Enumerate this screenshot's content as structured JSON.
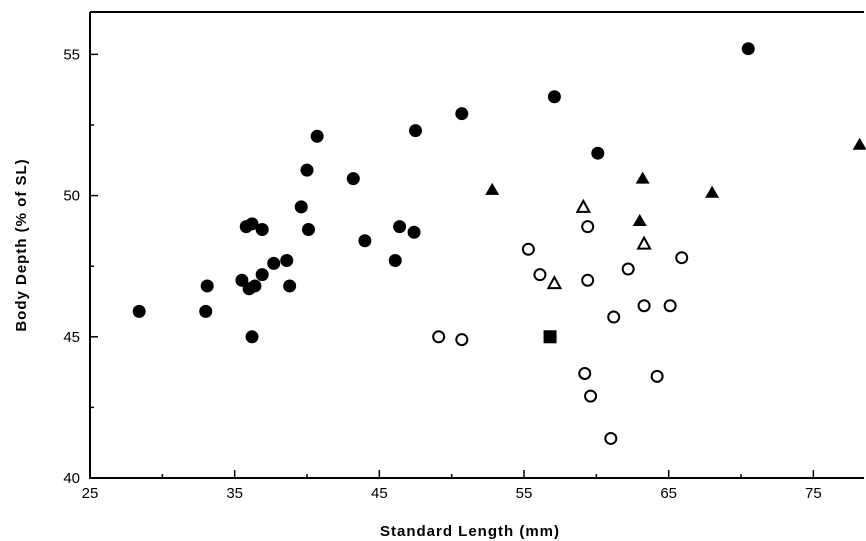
{
  "chart_data": {
    "type": "scatter",
    "title": "",
    "xlabel": "Standard Length (mm)",
    "ylabel": "Body Depth (% of SL)",
    "xlim": [
      25,
      78.5
    ],
    "ylim": [
      40,
      56.5
    ],
    "xticks": [
      25,
      35,
      45,
      55,
      65,
      75
    ],
    "yticks": [
      40,
      45,
      50,
      55
    ],
    "grid": false,
    "legend": "none",
    "series": [
      {
        "marker": "filled-circle",
        "color": "#000000",
        "points": [
          [
            28.4,
            45.9
          ],
          [
            33.0,
            45.9
          ],
          [
            33.1,
            46.8
          ],
          [
            35.5,
            47.0
          ],
          [
            35.8,
            48.9
          ],
          [
            36.0,
            46.7
          ],
          [
            36.2,
            49.0
          ],
          [
            36.2,
            45.0
          ],
          [
            36.4,
            46.8
          ],
          [
            36.9,
            47.2
          ],
          [
            36.9,
            48.8
          ],
          [
            37.7,
            47.6
          ],
          [
            38.6,
            47.7
          ],
          [
            38.8,
            46.8
          ],
          [
            39.6,
            49.6
          ],
          [
            40.0,
            50.9
          ],
          [
            40.1,
            48.8
          ],
          [
            40.7,
            52.1
          ],
          [
            43.2,
            50.6
          ],
          [
            44.0,
            48.4
          ],
          [
            46.1,
            47.7
          ],
          [
            46.4,
            48.9
          ],
          [
            47.4,
            48.7
          ],
          [
            47.5,
            52.3
          ],
          [
            50.7,
            52.9
          ],
          [
            57.1,
            53.5
          ],
          [
            60.1,
            51.5
          ],
          [
            70.5,
            55.2
          ]
        ]
      },
      {
        "marker": "open-circle",
        "color": "#000000",
        "points": [
          [
            49.1,
            45.0
          ],
          [
            50.7,
            44.9
          ],
          [
            55.3,
            48.1
          ],
          [
            56.1,
            47.2
          ],
          [
            59.2,
            43.7
          ],
          [
            59.4,
            48.9
          ],
          [
            59.4,
            47.0
          ],
          [
            59.6,
            42.9
          ],
          [
            61.0,
            41.4
          ],
          [
            61.2,
            45.7
          ],
          [
            62.2,
            47.4
          ],
          [
            63.3,
            46.1
          ],
          [
            64.2,
            43.6
          ],
          [
            65.1,
            46.1
          ],
          [
            65.9,
            47.8
          ]
        ]
      },
      {
        "marker": "filled-triangle",
        "color": "#000000",
        "points": [
          [
            52.8,
            50.2
          ],
          [
            63.0,
            49.1
          ],
          [
            63.2,
            50.6
          ],
          [
            68.0,
            50.1
          ],
          [
            78.2,
            51.8
          ]
        ]
      },
      {
        "marker": "open-triangle",
        "color": "#000000",
        "points": [
          [
            57.1,
            46.9
          ],
          [
            59.1,
            49.6
          ],
          [
            63.3,
            48.3
          ]
        ]
      },
      {
        "marker": "filled-square",
        "color": "#000000",
        "points": [
          [
            56.8,
            45.0
          ]
        ]
      }
    ]
  }
}
